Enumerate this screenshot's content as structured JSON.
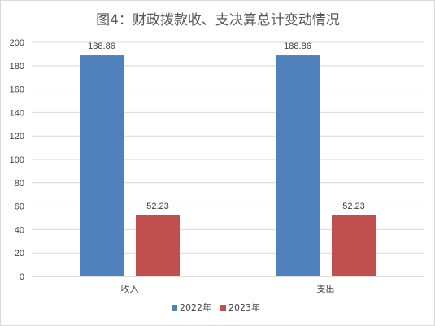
{
  "chart_data": {
    "type": "bar",
    "title": "图4：财政拨款收、支决算总计变动情况",
    "categories": [
      "收入",
      "支出"
    ],
    "series": [
      {
        "name": "2022年",
        "values": [
          188.86,
          188.86
        ],
        "color": "#4F81BD"
      },
      {
        "name": "2023年",
        "values": [
          52.23,
          52.23
        ],
        "color": "#C0504D"
      }
    ],
    "data_labels": true,
    "ylim": [
      0,
      200
    ],
    "y_ticks": [
      0,
      20,
      40,
      60,
      80,
      100,
      120,
      140,
      160,
      180,
      200
    ],
    "grid": true,
    "legend_position": "bottom"
  }
}
